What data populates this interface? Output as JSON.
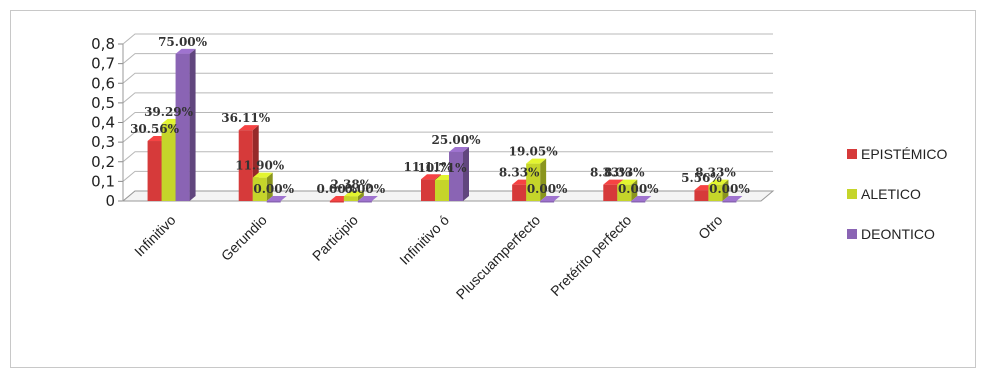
{
  "chart_data": {
    "type": "bar",
    "title": "",
    "xlabel": "",
    "ylabel": "",
    "ylim": [
      0,
      0.8
    ],
    "yticks": [
      "0",
      "0,1",
      "0,2",
      "0,3",
      "0,4",
      "0,5",
      "0,6",
      "0,7",
      "0,8"
    ],
    "categories": [
      "Infinitivo",
      "Gerundio",
      "Participio",
      "Infinitivo ó",
      "Pluscuamperfecto",
      "Pretérito perfecto",
      "Otro"
    ],
    "series": [
      {
        "name": "EPISTÉMICO",
        "color": "#d63a3a",
        "values": [
          0.3056,
          0.3611,
          0.0,
          0.1111,
          0.0833,
          0.0833,
          0.0556
        ],
        "labels": [
          "30.56%",
          "36.11%",
          "0.00%",
          "11.11%",
          "8.33%",
          "8.33%",
          "5.56%"
        ]
      },
      {
        "name": "ALETICO",
        "color": "#c5d52a",
        "values": [
          0.3929,
          0.119,
          0.0238,
          0.1071,
          0.1905,
          0.0833,
          0.0833
        ],
        "labels": [
          "39.29%",
          "11.90%",
          "2.38%",
          "10.71%",
          "19.05%",
          "8.33%",
          "8.33%"
        ]
      },
      {
        "name": "DEONTICO",
        "color": "#8a64b4",
        "values": [
          0.75,
          0.0,
          0.0,
          0.25,
          0.0,
          0.0,
          0.0
        ],
        "labels": [
          "75.00%",
          "0.00%",
          "0.00%",
          "25.00%",
          "0.00%",
          "0.00%",
          "0.00%"
        ]
      }
    ],
    "grid": true,
    "legend": "right"
  }
}
